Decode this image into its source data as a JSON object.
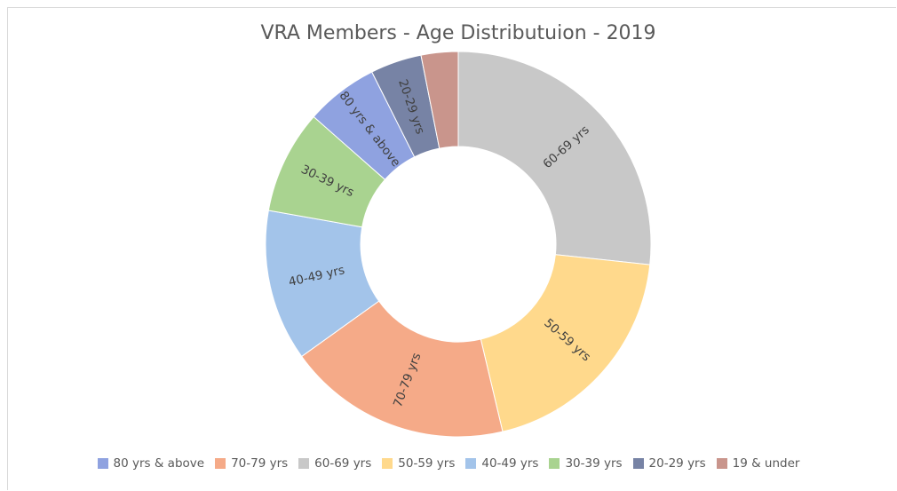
{
  "chart_data": {
    "type": "donut",
    "title": "VRA Members  - Age Distributuion  - 2019",
    "categories": [
      "80 yrs & above",
      "70-79 yrs",
      "60-69 yrs",
      "50-59 yrs",
      "40-49 yrs",
      "30-39 yrs",
      "20-29 yrs",
      "19 & under"
    ],
    "values": [
      6.1,
      18.8,
      26.7,
      19.6,
      12.7,
      8.7,
      4.3,
      3.1
    ],
    "colors": [
      "#8fa2e0",
      "#f5aa88",
      "#c8c8c8",
      "#ffd98c",
      "#a3c4ea",
      "#a9d390",
      "#7783a5",
      "#c9958c"
    ],
    "legend": "bottom"
  }
}
